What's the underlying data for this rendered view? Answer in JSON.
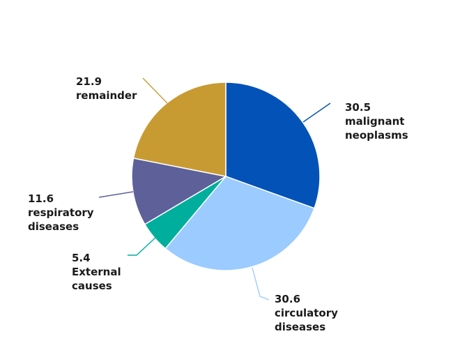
{
  "chart_data": {
    "type": "pie",
    "title": "",
    "slices": [
      {
        "value": 30.5,
        "value_label": "30.5",
        "label_lines": [
          "malignant",
          "neoplasms"
        ],
        "color": "#0252B8"
      },
      {
        "value": 30.6,
        "value_label": "30.6",
        "label_lines": [
          "circulatory",
          "diseases"
        ],
        "color": "#9BCBFF"
      },
      {
        "value": 5.4,
        "value_label": "5.4",
        "label_lines": [
          "External",
          "causes"
        ],
        "color": "#00AE9E"
      },
      {
        "value": 11.6,
        "value_label": "11.6",
        "label_lines": [
          "respiratory",
          "diseases"
        ],
        "color": "#5E6099"
      },
      {
        "value": 21.9,
        "value_label": "21.9",
        "label_lines": [
          "remainder"
        ],
        "color": "#C89B32"
      }
    ],
    "start_angle_deg": 0,
    "direction": "clockwise",
    "legend": "none",
    "labels": "outside-with-leader-lines"
  }
}
